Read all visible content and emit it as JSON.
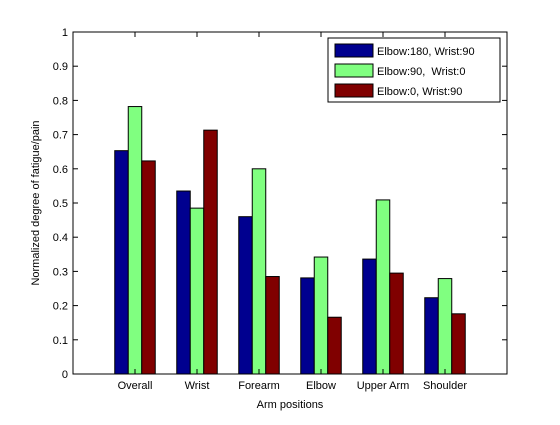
{
  "chart_data": {
    "type": "bar",
    "xlabel": "Arm positions",
    "ylabel": "Normalized degree of fatigue/pain",
    "ylim": [
      0,
      1
    ],
    "yticks": [
      "0",
      "0.1",
      "0.2",
      "0.3",
      "0.4",
      "0.5",
      "0.6",
      "0.7",
      "0.8",
      "0.9",
      "1"
    ],
    "categories": [
      "Overall",
      "Wrist",
      "Forearm",
      "Elbow",
      "Upper Arm",
      "Shoulder"
    ],
    "series": [
      {
        "name": "Elbow:180, Wrist:90",
        "color": "#00008f",
        "values": [
          0.653,
          0.535,
          0.46,
          0.281,
          0.336,
          0.223
        ]
      },
      {
        "name": "Elbow:90,  Wrist:0",
        "color": "#80ff80",
        "values": [
          0.782,
          0.485,
          0.6,
          0.342,
          0.509,
          0.279
        ]
      },
      {
        "name": "Elbow:0, Wrist:90",
        "color": "#800000",
        "values": [
          0.623,
          0.713,
          0.285,
          0.166,
          0.295,
          0.176
        ]
      }
    ],
    "legend_position": "top-right",
    "grid": false
  }
}
